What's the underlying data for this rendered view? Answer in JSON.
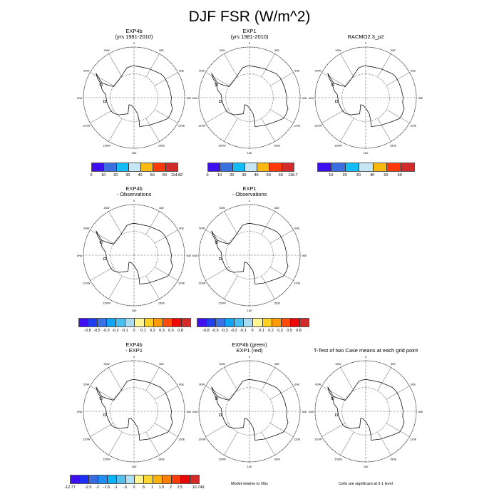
{
  "figure_title": "DJF FSR (W/m^2)",
  "map_labels": [
    "0",
    "30E",
    "60E",
    "90E",
    "120E",
    "150E",
    "180",
    "150W",
    "120W",
    "90W",
    "60W",
    "30W"
  ],
  "panels": [
    {
      "title1": "EXP4b",
      "title2": "(yrs 1981-2010)"
    },
    {
      "title1": "EXP1",
      "title2": "(yrs 1981-2010)"
    },
    {
      "title1": "RACMO2.3_p2",
      "title2": ""
    },
    {
      "title1": "EXP4b",
      "title2": "- Observations"
    },
    {
      "title1": "EXP1",
      "title2": "- Observations"
    },
    {
      "title1": "EXP4b",
      "title2": "- EXP1"
    },
    {
      "title1": "EXP4b (green)",
      "title2": "EXP1 (red)"
    },
    {
      "title1": "T-Test of two Case means at each grid point",
      "title2": ""
    }
  ],
  "colorbars": [
    {
      "colors": [
        "#3f0ff0",
        "#3a6fe0",
        "#12bdf5",
        "#c6e6f5",
        "#fbb80f",
        "#fb3a08",
        "#d32a2a"
      ],
      "labels": [
        "0",
        "10",
        "20",
        "30",
        "40",
        "50",
        "60",
        "114.82"
      ],
      "edge_labels": true
    },
    {
      "colors": [
        "#3f0ff0",
        "#3a6fe0",
        "#12bdf5",
        "#c6e6f5",
        "#fbb80f",
        "#fb3a08",
        "#d32a2a"
      ],
      "labels": [
        "0",
        "10",
        "20",
        "30",
        "40",
        "50",
        "60",
        "118.7"
      ],
      "edge_labels": true
    },
    {
      "colors": [
        "#3f0ff0",
        "#3a6fe0",
        "#12bdf5",
        "#c6e6f5",
        "#fbb80f",
        "#fb3a08",
        "#d32a2a"
      ],
      "labels": [
        "10",
        "20",
        "30",
        "40",
        "50",
        "60"
      ],
      "edge_labels": false
    },
    {
      "colors": [
        "#3f0ff0",
        "#2040f0",
        "#3a72e6",
        "#10a4f5",
        "#45c0f0",
        "#a8daf0",
        "#fff590",
        "#fdd020",
        "#fc9a08",
        "#fc4c08",
        "#ee0808",
        "#d32a2a"
      ],
      "labels": [
        "-0.8",
        "-0.5",
        "-0.3",
        "-0.2",
        "-0.1",
        "0",
        "0.1",
        "0.2",
        "0.3",
        "0.5",
        "0.8"
      ],
      "edge_labels": false
    },
    {
      "colors": [
        "#3f0ff0",
        "#2040f0",
        "#3a72e6",
        "#10a4f5",
        "#45c0f0",
        "#a8daf0",
        "#fff590",
        "#fdd020",
        "#fc9a08",
        "#fc4c08",
        "#ee0808",
        "#d32a2a"
      ],
      "labels": [
        "-0.8",
        "-0.5",
        "-0.3",
        "-0.2",
        "-0.1",
        "0",
        "0.1",
        "0.2",
        "0.3",
        "0.5",
        "0.8"
      ],
      "edge_labels": false
    },
    {
      "colors": [
        "#3f0ff0",
        "#1a30f8",
        "#3a6ae0",
        "#1f8ef5",
        "#08b4f8",
        "#55c0ee",
        "#aee0f5",
        "#fff590",
        "#fdd830",
        "#fdb20a",
        "#fb8008",
        "#fb3c08",
        "#e80606",
        "#d32a2a"
      ],
      "labels": [
        "-12.77",
        "-2.5",
        "-2",
        "-1.5",
        "-1",
        "-.5",
        "0",
        ".5",
        "1",
        "1.5",
        "2",
        "2.5",
        "10.749"
      ],
      "edge_labels": true
    }
  ],
  "notes": {
    "model_relative": "Model relative to Obs",
    "significance": "Cells are significant at 0.1 level"
  }
}
